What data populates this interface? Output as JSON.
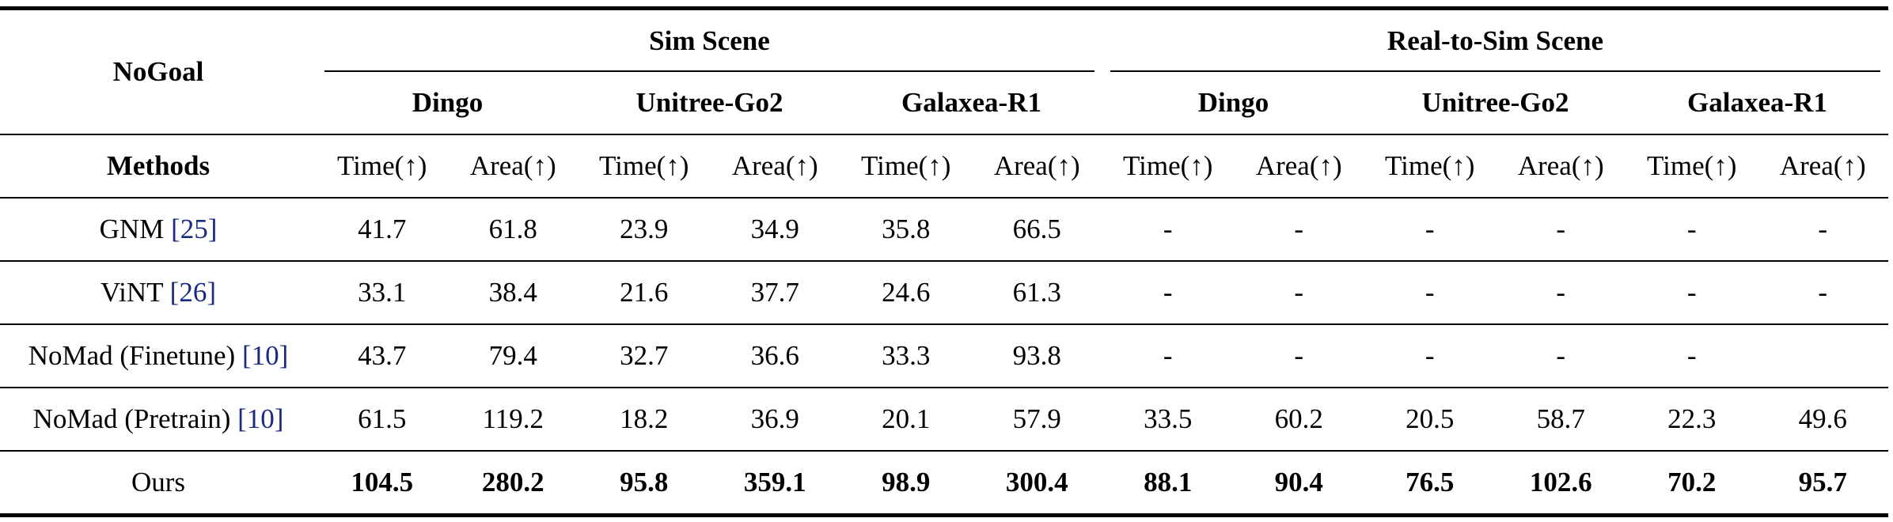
{
  "table": {
    "corner": "NoGoal",
    "method_header": "Methods",
    "groups": [
      {
        "name": "Sim Scene",
        "robots": [
          "Dingo",
          "Unitree-Go2",
          "Galaxea-R1"
        ]
      },
      {
        "name": "Real-to-Sim Scene",
        "robots": [
          "Dingo",
          "Unitree-Go2",
          "Galaxea-R1"
        ]
      }
    ],
    "metrics": [
      "Time(↑)",
      "Area(↑)",
      "Time(↑)",
      "Area(↑)",
      "Time(↑)",
      "Area(↑)",
      "Time(↑)",
      "Area(↑)",
      "Time(↑)",
      "Area(↑)",
      "Time(↑)",
      "Area(↑)"
    ],
    "rows": [
      {
        "method": "GNM",
        "ref": "[25]",
        "values": [
          41.7,
          61.8,
          23.9,
          34.9,
          35.8,
          66.5,
          "-",
          "-",
          "-",
          "-",
          "-",
          "-"
        ]
      },
      {
        "method": "ViNT",
        "ref": "[26]",
        "values": [
          33.1,
          38.4,
          21.6,
          37.7,
          24.6,
          61.3,
          "-",
          "-",
          "-",
          "-",
          "-",
          "-"
        ]
      },
      {
        "method": "NoMad (Finetune)",
        "ref": "[10]",
        "values": [
          43.7,
          79.4,
          32.7,
          36.6,
          33.3,
          93.8,
          "-",
          "-",
          "-",
          "-",
          "-",
          null
        ]
      },
      {
        "method": "NoMad (Pretrain)",
        "ref": "[10]",
        "values": [
          61.5,
          119.2,
          18.2,
          36.9,
          20.1,
          57.9,
          33.5,
          60.2,
          20.5,
          58.7,
          22.3,
          49.6
        ]
      },
      {
        "method": "Ours",
        "bold_values": true,
        "values": [
          104.5,
          280.2,
          95.8,
          359.1,
          98.9,
          300.4,
          88.1,
          90.4,
          76.5,
          102.6,
          70.2,
          95.7
        ]
      }
    ]
  }
}
